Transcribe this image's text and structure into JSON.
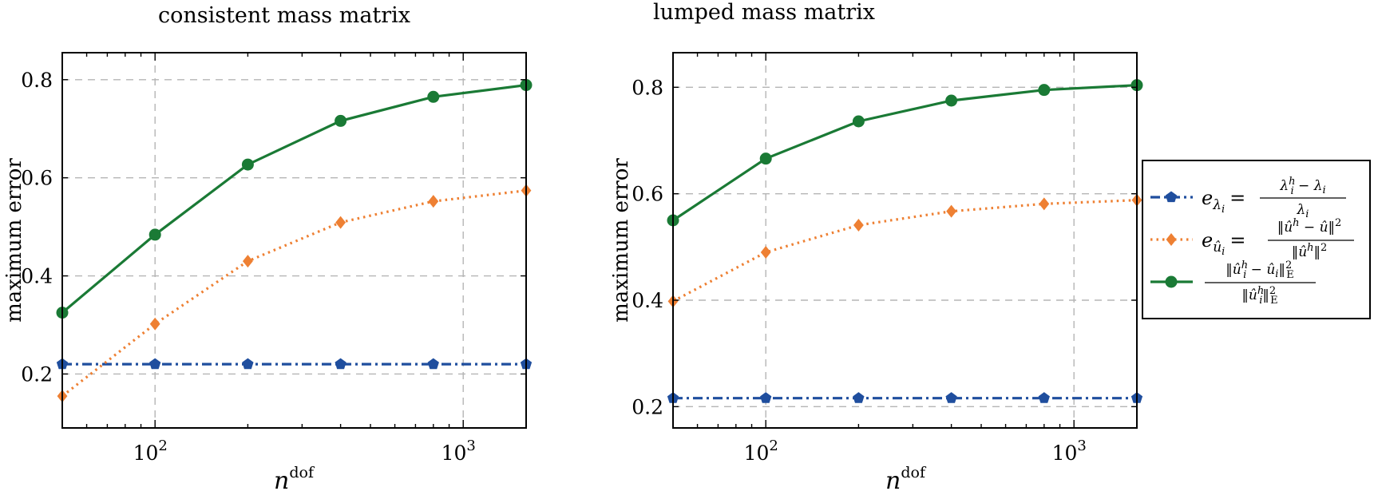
{
  "chart_data": [
    {
      "type": "line",
      "title": "consistent mass matrix",
      "xlabel": "n",
      "xlabel_sup": "dof",
      "ylabel": "maximum error",
      "xscale": "log",
      "xlim": [
        50,
        1600
      ],
      "ylim": [
        0.09,
        0.855
      ],
      "xticks": [
        100,
        1000
      ],
      "xtick_labels": [
        {
          "base": "10",
          "exp": "2"
        },
        {
          "base": "10",
          "exp": "3"
        }
      ],
      "yticks": [
        0.2,
        0.4,
        0.6,
        0.8
      ],
      "ytick_labels": [
        "0.2",
        "0.4",
        "0.6",
        "0.8"
      ],
      "grid": true,
      "x": [
        50,
        100,
        200,
        400,
        800,
        1600
      ],
      "series": [
        {
          "key": "e_lambda",
          "values": [
            0.22,
            0.22,
            0.22,
            0.22,
            0.22,
            0.22
          ]
        },
        {
          "key": "e_u",
          "values": [
            0.155,
            0.302,
            0.43,
            0.509,
            0.552,
            0.574
          ]
        },
        {
          "key": "energy",
          "values": [
            0.325,
            0.484,
            0.627,
            0.716,
            0.765,
            0.789
          ]
        }
      ]
    },
    {
      "type": "line",
      "title": "lumped mass matrix",
      "xlabel": "n",
      "xlabel_sup": "dof",
      "ylabel": "maximum error",
      "xscale": "log",
      "xlim": [
        50,
        1600
      ],
      "ylim": [
        0.16,
        0.865
      ],
      "xticks": [
        100,
        1000
      ],
      "xtick_labels": [
        {
          "base": "10",
          "exp": "2"
        },
        {
          "base": "10",
          "exp": "3"
        }
      ],
      "yticks": [
        0.2,
        0.4,
        0.6,
        0.8
      ],
      "ytick_labels": [
        "0.2",
        "0.4",
        "0.6",
        "0.8"
      ],
      "grid": true,
      "x": [
        50,
        100,
        200,
        400,
        800,
        1600
      ],
      "series": [
        {
          "key": "e_lambda",
          "values": [
            0.216,
            0.216,
            0.216,
            0.216,
            0.216,
            0.216
          ]
        },
        {
          "key": "e_u",
          "values": [
            0.398,
            0.49,
            0.541,
            0.567,
            0.581,
            0.588
          ]
        },
        {
          "key": "energy",
          "values": [
            0.55,
            0.666,
            0.736,
            0.775,
            0.795,
            0.804
          ]
        }
      ]
    }
  ],
  "legend": {
    "placement": "right of second chart",
    "entries": [
      {
        "key": "e_lambda",
        "color": "#1f4e9e",
        "line": "dashdot",
        "marker": "pentagon",
        "lhs": "e",
        "lhs_sub": "λ",
        "lhs_subsub": "i",
        "num": "λ",
        "num_sup": "h",
        "num_sub": "i",
        "num_rest": " − λ",
        "num_rest_sub": "i",
        "den": "λ",
        "den_sub": "i"
      },
      {
        "key": "e_u",
        "color": "#ee8033",
        "line": "dotted",
        "marker": "diamond",
        "lhs": "e",
        "lhs_sub": "û",
        "lhs_subsub": "i",
        "num": "‖û",
        "num_sup": "h",
        "num_rest": " − û‖",
        "num_rest_sup": "2",
        "den": "‖û",
        "den_sup": "h",
        "den_rest": "‖",
        "den_rest_sup": "2"
      },
      {
        "key": "energy",
        "color": "#1a7a35",
        "line": "solid",
        "marker": "circle",
        "num": "‖û",
        "num_sup": "h",
        "num_sub": "i",
        "num_rest": " − û",
        "num_rest_sub": "i",
        "num_end": "‖",
        "num_end_sup": "2",
        "num_end_sub": "E",
        "den": "‖û",
        "den_sup": "h",
        "den_sub": "i",
        "den_end": "‖",
        "den_end_sup": "2",
        "den_end_sub": "E"
      }
    ]
  }
}
